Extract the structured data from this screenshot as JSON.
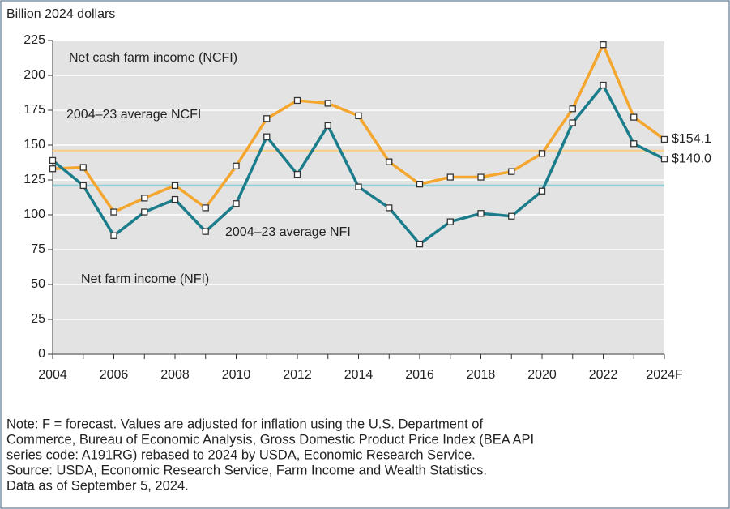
{
  "chart_data": {
    "type": "line",
    "y_axis_label": "Billion 2024 dollars",
    "categories": [
      "2004",
      null,
      "2006",
      null,
      "2008",
      null,
      "2010",
      null,
      "2012",
      null,
      "2014",
      null,
      "2016",
      null,
      "2018",
      null,
      "2020",
      null,
      "2022",
      null,
      "2024F"
    ],
    "series": [
      {
        "name": "Net cash farm income (NCFI)",
        "color": "#f4a62f",
        "values": [
          133,
          134,
          102,
          112,
          121,
          105,
          135,
          169,
          182,
          180,
          171,
          138,
          122,
          127,
          127,
          131,
          144,
          176,
          222,
          170,
          154.1
        ],
        "value_labels": [
          null,
          null,
          null,
          null,
          null,
          null,
          null,
          null,
          null,
          null,
          null,
          null,
          null,
          null,
          null,
          null,
          null,
          null,
          null,
          null,
          "$154.1"
        ]
      },
      {
        "name": "Net farm income (NFI)",
        "color": "#1b7d8b",
        "values": [
          139,
          121,
          85,
          102,
          111,
          88,
          108,
          156,
          129,
          164,
          120,
          105,
          79,
          95,
          101,
          99,
          117,
          166,
          193,
          151,
          140.0
        ],
        "value_labels": [
          null,
          null,
          null,
          null,
          null,
          null,
          null,
          null,
          null,
          null,
          null,
          null,
          null,
          null,
          null,
          null,
          null,
          null,
          null,
          null,
          "$140.0"
        ]
      }
    ],
    "reference_lines": [
      {
        "name": "2004–23 average NCFI",
        "value": 146,
        "color": "#f9cf90"
      },
      {
        "name": "2004–23 average NFI",
        "value": 121,
        "color": "#93cfd6"
      }
    ],
    "ylim": [
      0,
      225
    ],
    "yticks": [
      0,
      25,
      50,
      75,
      100,
      125,
      150,
      175,
      200,
      225
    ],
    "grid": true,
    "notes": [
      "Note: F = forecast. Values are adjusted for inflation using the U.S. Department of",
      "Commerce, Bureau of Economic Analysis, Gross Domestic Product Price Index (BEA API",
      "series code: A191RG) rebased to 2024 by USDA, Economic Research Service.",
      "Source: USDA, Economic Research Service, Farm Income and Wealth Statistics.",
      "Data as of September 5, 2024."
    ]
  }
}
